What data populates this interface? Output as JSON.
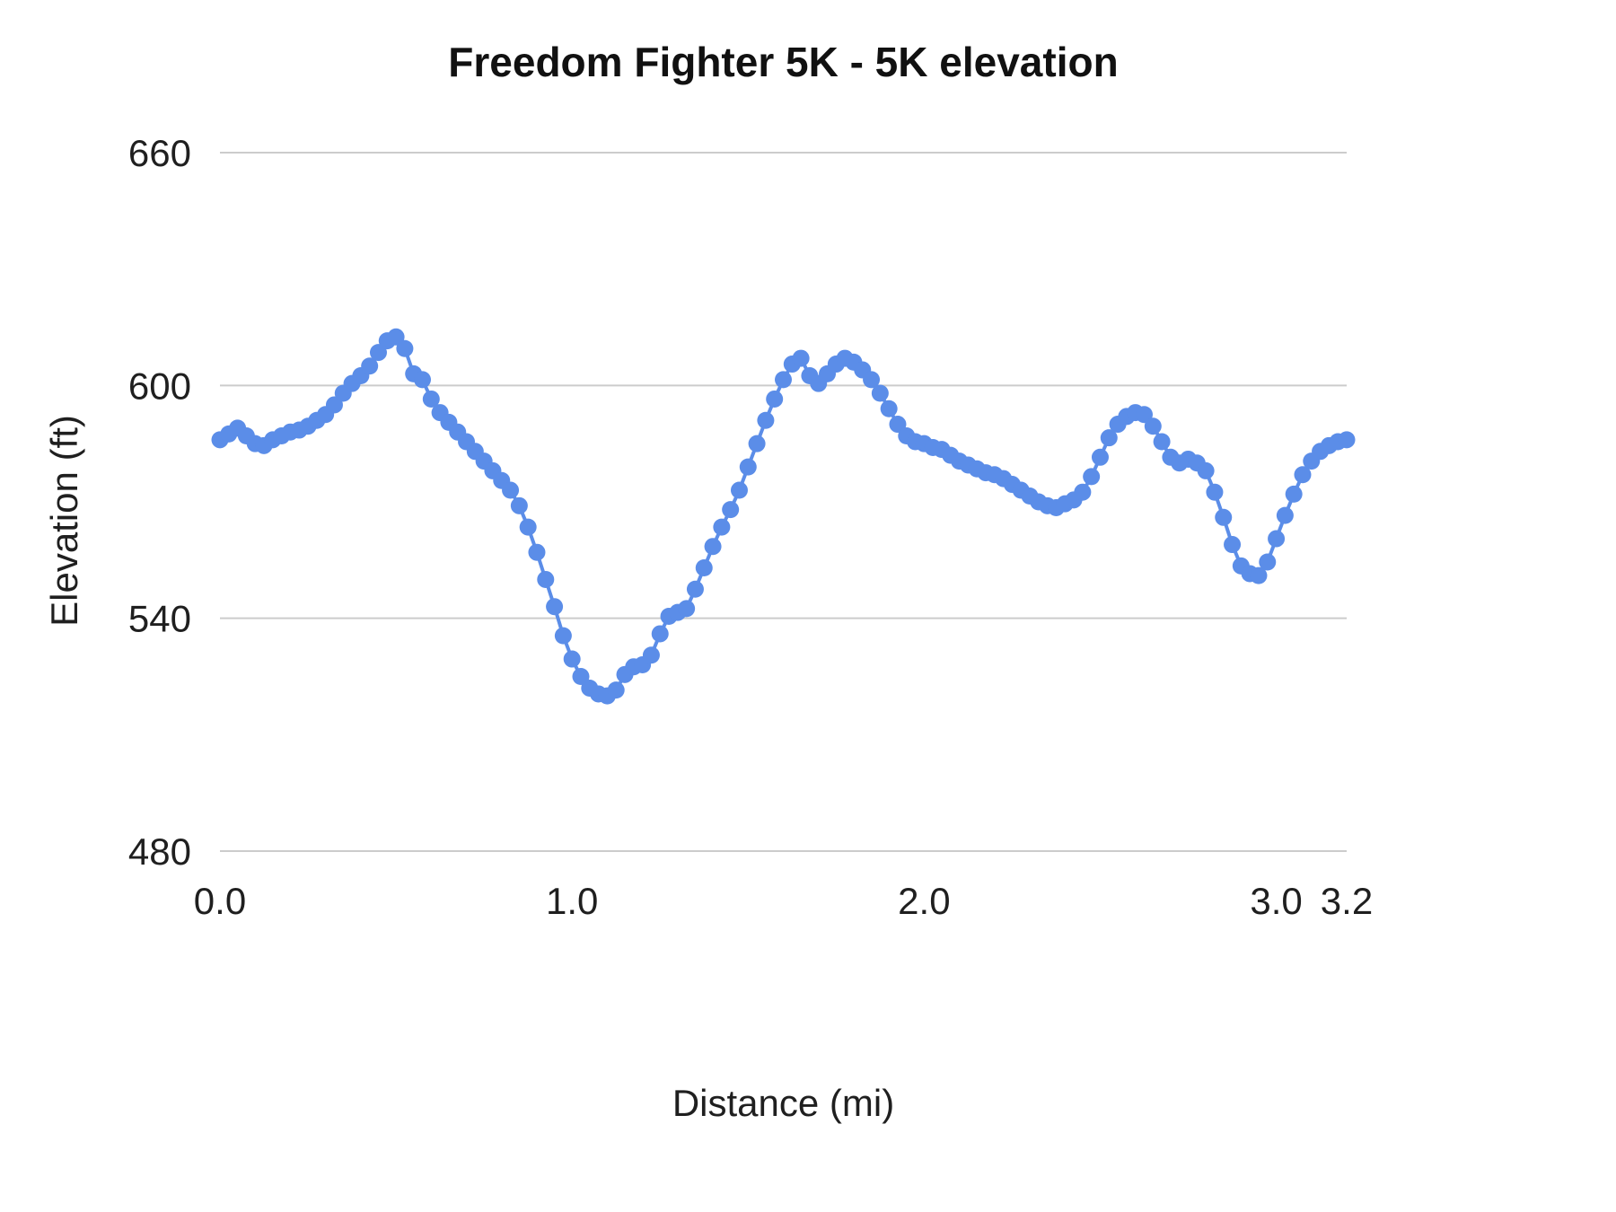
{
  "chart_data": {
    "type": "line",
    "title": "Freedom Fighter 5K  - 5K elevation",
    "xlabel": "Distance (mi)",
    "ylabel": "Elevation (ft)",
    "xlim": [
      0,
      3.2
    ],
    "ylim": [
      480,
      660
    ],
    "grid": "horizontal",
    "legend": "none",
    "marker": "circle",
    "colors": {
      "line": "#5b8de8",
      "grid": "#cccccc",
      "text": "#1f1f1f"
    },
    "y_ticks": [
      660,
      600,
      540,
      480
    ],
    "x_ticks": [
      {
        "value": 0.0,
        "label": "0.0"
      },
      {
        "value": 1.0,
        "label": "1.0"
      },
      {
        "value": 2.0,
        "label": "2.0"
      },
      {
        "value": 3.0,
        "label": "3.0"
      },
      {
        "value": 3.2,
        "label": "3.2"
      }
    ],
    "x": [
      0,
      0.025,
      0.05,
      0.075,
      0.1,
      0.125,
      0.15,
      0.175,
      0.2,
      0.225,
      0.25,
      0.275,
      0.3,
      0.325,
      0.35,
      0.375,
      0.4,
      0.425,
      0.45,
      0.475,
      0.5,
      0.525,
      0.55,
      0.575,
      0.6,
      0.625,
      0.65,
      0.675,
      0.7,
      0.725,
      0.75,
      0.775,
      0.8,
      0.825,
      0.85,
      0.875,
      0.9,
      0.925,
      0.95,
      0.975,
      1,
      1.025,
      1.05,
      1.075,
      1.1,
      1.125,
      1.15,
      1.175,
      1.2,
      1.225,
      1.25,
      1.275,
      1.3,
      1.325,
      1.35,
      1.375,
      1.4,
      1.425,
      1.45,
      1.475,
      1.5,
      1.525,
      1.55,
      1.575,
      1.6,
      1.625,
      1.65,
      1.675,
      1.7,
      1.725,
      1.75,
      1.775,
      1.8,
      1.825,
      1.85,
      1.875,
      1.9,
      1.925,
      1.95,
      1.975,
      2,
      2.025,
      2.05,
      2.075,
      2.1,
      2.125,
      2.15,
      2.175,
      2.2,
      2.225,
      2.25,
      2.275,
      2.3,
      2.325,
      2.35,
      2.375,
      2.4,
      2.425,
      2.45,
      2.475,
      2.5,
      2.525,
      2.55,
      2.575,
      2.6,
      2.625,
      2.65,
      2.675,
      2.7,
      2.725,
      2.75,
      2.775,
      2.8,
      2.825,
      2.85,
      2.875,
      2.9,
      2.925,
      2.95,
      2.975,
      3,
      3.025,
      3.05,
      3.075,
      3.1,
      3.125,
      3.15,
      3.175,
      3.2
    ],
    "elevation": [
      586,
      587.5,
      589,
      587,
      585,
      584.5,
      586,
      587,
      588,
      588.5,
      589.5,
      591,
      592.5,
      595,
      598,
      600.5,
      602.5,
      605,
      608.5,
      611.5,
      612.5,
      609.5,
      603,
      601.5,
      596.5,
      593,
      590.5,
      588,
      585.5,
      583,
      580.5,
      578,
      575.5,
      573,
      569,
      563.5,
      557,
      550,
      543,
      535.5,
      529.5,
      525,
      522,
      520.5,
      520,
      521.5,
      525.5,
      527.5,
      528,
      530.5,
      536,
      540.5,
      541.5,
      542.5,
      547.5,
      553,
      558.5,
      563.5,
      568,
      573,
      579,
      585,
      591,
      596.5,
      601.5,
      605.5,
      607,
      602.5,
      600.5,
      603,
      605.5,
      607,
      606,
      604,
      601.5,
      598,
      594,
      590,
      587,
      585.5,
      585,
      584,
      583.5,
      582,
      580.5,
      579.5,
      578.5,
      577.5,
      577,
      576,
      574.5,
      573,
      571.5,
      570,
      569,
      568.5,
      569.5,
      570.5,
      572.5,
      576.5,
      581.5,
      586.5,
      590,
      592,
      593,
      592.5,
      589.5,
      585.5,
      581.5,
      580,
      581,
      580,
      578,
      572.5,
      566,
      559,
      553.5,
      551.5,
      551,
      554.5,
      560.5,
      566.5,
      572,
      577,
      580.5,
      583,
      584.5,
      585.5,
      586
    ]
  }
}
